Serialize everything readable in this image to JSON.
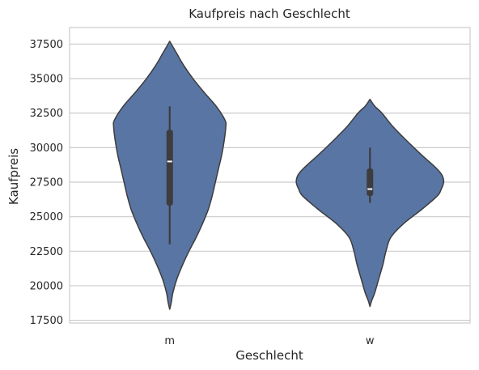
{
  "chart_data": {
    "type": "violin",
    "title": "Kaufpreis nach Geschlecht",
    "xlabel": "Geschlecht",
    "ylabel": "Kaufpreis",
    "categories": [
      "m",
      "w"
    ],
    "ylim": [
      17300,
      38700
    ],
    "yticks": [
      17500,
      20000,
      22500,
      25000,
      27500,
      30000,
      32500,
      35000,
      37500
    ],
    "grid": true,
    "grid_axis": "y",
    "colors": {
      "violin_fill": "#5975a4",
      "violin_edge": "#3d3d3d",
      "box": "#3d3d3d",
      "median": "#ffffff",
      "grid": "#cccccc",
      "spine": "#cccccc"
    },
    "series": [
      {
        "category": "m",
        "min": 18300,
        "max": 37700,
        "whisker_low": 23000,
        "q1": 25800,
        "median": 29000,
        "q3": 31300,
        "whisker_high": 33000,
        "density_profile": [
          [
            18300,
            0.0
          ],
          [
            18800,
            0.02
          ],
          [
            19500,
            0.04
          ],
          [
            20500,
            0.09
          ],
          [
            21500,
            0.16
          ],
          [
            22500,
            0.24
          ],
          [
            23500,
            0.33
          ],
          [
            24500,
            0.41
          ],
          [
            25500,
            0.48
          ],
          [
            26500,
            0.53
          ],
          [
            27500,
            0.57
          ],
          [
            28500,
            0.61
          ],
          [
            29500,
            0.65
          ],
          [
            30500,
            0.68
          ],
          [
            31500,
            0.7
          ],
          [
            32000,
            0.69
          ],
          [
            33000,
            0.58
          ],
          [
            34000,
            0.43
          ],
          [
            35000,
            0.29
          ],
          [
            36000,
            0.17
          ],
          [
            36800,
            0.09
          ],
          [
            37300,
            0.04
          ],
          [
            37700,
            0.0
          ]
        ]
      },
      {
        "category": "w",
        "min": 18500,
        "max": 33500,
        "whisker_low": 26000,
        "q1": 26500,
        "median": 27000,
        "q3": 28500,
        "whisker_high": 30000,
        "density_profile": [
          [
            18500,
            0.0
          ],
          [
            18900,
            0.02
          ],
          [
            19500,
            0.06
          ],
          [
            20500,
            0.11
          ],
          [
            21500,
            0.16
          ],
          [
            22500,
            0.2
          ],
          [
            23500,
            0.26
          ],
          [
            24500,
            0.42
          ],
          [
            25500,
            0.64
          ],
          [
            26500,
            0.84
          ],
          [
            27000,
            0.89
          ],
          [
            27500,
            0.92
          ],
          [
            28000,
            0.9
          ],
          [
            28500,
            0.83
          ],
          [
            29500,
            0.64
          ],
          [
            30500,
            0.46
          ],
          [
            31500,
            0.29
          ],
          [
            32500,
            0.15
          ],
          [
            33000,
            0.06
          ],
          [
            33500,
            0.0
          ]
        ]
      }
    ]
  }
}
